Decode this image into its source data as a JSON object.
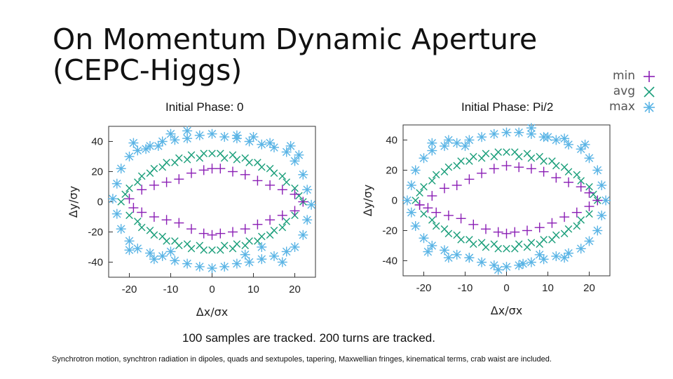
{
  "title_line1": "On Momentum Dynamic Aperture",
  "title_line2": "(CEPC-Higgs)",
  "colors": {
    "min": "#8B1FB5",
    "avg": "#1A9E7A",
    "max": "#5AB4E5",
    "axis": "#333333"
  },
  "legend": [
    {
      "label": "min",
      "symbol": "plus",
      "color": "#8B1FB5"
    },
    {
      "label": "avg",
      "symbol": "cross",
      "color": "#1A9E7A"
    },
    {
      "label": "max",
      "symbol": "star",
      "color": "#5AB4E5"
    }
  ],
  "footnote": "100 samples are tracked. 200 turns are tracked.",
  "subnote": "Synchrotron motion, synchtron radiation in dipoles, quads and sextupoles, tapering, Maxwellian fringes, kinematical terms, crab waist are included.",
  "chart_data": [
    {
      "type": "scatter",
      "title": "Initial Phase: 0",
      "xlabel": "Δx/σx",
      "ylabel": "Δy/σy",
      "xlim": [
        -25,
        25
      ],
      "ylim": [
        -50,
        50
      ],
      "xticks": [
        -20,
        -10,
        0,
        10,
        20
      ],
      "yticks": [
        -40,
        -20,
        0,
        20,
        40
      ],
      "series": [
        {
          "name": "min",
          "symbol": "plus",
          "color": "#8B1FB5",
          "x": [
            -20,
            -17,
            -14,
            -11,
            -8,
            -5,
            -2,
            0,
            2,
            5,
            8,
            11,
            14,
            17,
            20,
            22,
            20,
            17,
            14,
            11,
            8,
            5,
            2,
            0,
            -2,
            -5,
            -8,
            -11,
            -14,
            -17,
            -19
          ],
          "y": [
            2,
            8,
            11,
            13,
            15,
            19,
            21,
            22,
            22,
            20,
            18,
            14,
            11,
            8,
            5,
            0,
            -6,
            -9,
            -12,
            -15,
            -18,
            -20,
            -21,
            -22,
            -21,
            -18,
            -14,
            -12,
            -10,
            -7,
            -4
          ]
        },
        {
          "name": "avg",
          "symbol": "cross",
          "color": "#1A9E7A",
          "x": [
            -22,
            -20,
            -17,
            -14,
            -11,
            -8,
            -5,
            -2,
            0,
            2,
            5,
            8,
            11,
            14,
            17,
            20,
            22,
            20,
            17,
            14,
            11,
            8,
            5,
            2,
            0,
            -2,
            -5,
            -8,
            -11,
            -14,
            -17,
            -20,
            -21,
            -18,
            -15,
            -12,
            -9,
            -6,
            -3,
            3,
            6,
            9,
            12,
            15,
            18,
            21,
            18,
            15,
            12,
            9,
            6,
            3,
            -3,
            -6,
            -9,
            -12,
            -15,
            -18
          ],
          "y": [
            0,
            9,
            17,
            22,
            26,
            29,
            31,
            32,
            32,
            32,
            31,
            29,
            26,
            22,
            17,
            9,
            0,
            -9,
            -17,
            -22,
            -26,
            -29,
            -31,
            -32,
            -32,
            -32,
            -31,
            -29,
            -26,
            -22,
            -17,
            -9,
            5,
            13,
            19,
            23,
            26,
            28,
            29,
            29,
            28,
            26,
            23,
            19,
            13,
            4,
            -13,
            -19,
            -23,
            -26,
            -28,
            -29,
            -29,
            -28,
            -26,
            -23,
            -19,
            -13
          ]
        },
        {
          "name": "max",
          "symbol": "star",
          "color": "#5AB4E5",
          "x": [
            -24,
            -23,
            -22,
            -20,
            -18,
            -15,
            -12,
            -9,
            -6,
            -3,
            0,
            3,
            6,
            9,
            12,
            15,
            18,
            20,
            22,
            23,
            24,
            23,
            22,
            20,
            18,
            15,
            12,
            9,
            6,
            3,
            0,
            -3,
            -6,
            -9,
            -12,
            -15,
            -18,
            -20,
            -22,
            -23,
            -19,
            -16,
            -13,
            -10,
            -6,
            6,
            10,
            14,
            19,
            21,
            -20,
            -14,
            -10,
            8,
            12,
            17
          ],
          "y": [
            2,
            12,
            22,
            30,
            34,
            37,
            40,
            41,
            42,
            44,
            45,
            43,
            42,
            40,
            38,
            36,
            33,
            27,
            18,
            8,
            -2,
            -12,
            -22,
            -30,
            -33,
            -36,
            -38,
            -40,
            -41,
            -43,
            -44,
            -43,
            -41,
            -39,
            -36,
            -34,
            -31,
            -26,
            -18,
            -8,
            39,
            35,
            37,
            45,
            47,
            44,
            43,
            39,
            37,
            31,
            -32,
            -38,
            -33,
            -35,
            -30,
            -40
          ]
        }
      ]
    },
    {
      "type": "scatter",
      "title": "Initial Phase: Pi/2",
      "xlabel": "Δx/σx",
      "ylabel": "Δy/σy",
      "xlim": [
        -25,
        25
      ],
      "ylim": [
        -50,
        50
      ],
      "xticks": [
        -20,
        -10,
        0,
        10,
        20
      ],
      "yticks": [
        -40,
        -20,
        0,
        20,
        40
      ],
      "series": [
        {
          "name": "min",
          "symbol": "plus",
          "color": "#8B1FB5",
          "x": [
            -21,
            -18,
            -15,
            -12,
            -9,
            -6,
            -3,
            0,
            3,
            6,
            9,
            12,
            15,
            18,
            20,
            22,
            20,
            17,
            14,
            11,
            8,
            5,
            2,
            0,
            -2,
            -5,
            -8,
            -11,
            -14,
            -17,
            -19,
            -21
          ],
          "y": [
            -3,
            3,
            8,
            10,
            14,
            18,
            21,
            23,
            22,
            21,
            19,
            15,
            12,
            9,
            5,
            0,
            -4,
            -8,
            -11,
            -15,
            -18,
            -20,
            -21,
            -22,
            -21,
            -19,
            -16,
            -12,
            -10,
            -8,
            -5,
            -3
          ]
        },
        {
          "name": "avg",
          "symbol": "cross",
          "color": "#1A9E7A",
          "x": [
            -22,
            -20,
            -17,
            -14,
            -11,
            -8,
            -5,
            -2,
            0,
            2,
            5,
            8,
            11,
            14,
            17,
            20,
            22,
            20,
            17,
            14,
            11,
            8,
            5,
            2,
            0,
            -2,
            -5,
            -8,
            -11,
            -14,
            -17,
            -20,
            -21,
            -18,
            -15,
            -12,
            -9,
            -6,
            -3,
            3,
            6,
            9,
            12,
            15,
            18,
            21,
            18,
            15,
            12,
            9,
            6,
            3,
            -3,
            -6,
            -9,
            -12,
            -15,
            -18
          ],
          "y": [
            0,
            9,
            17,
            22,
            26,
            29,
            31,
            32,
            32,
            32,
            31,
            29,
            26,
            22,
            17,
            9,
            0,
            -9,
            -17,
            -22,
            -26,
            -29,
            -31,
            -32,
            -32,
            -32,
            -31,
            -29,
            -26,
            -22,
            -17,
            -9,
            5,
            13,
            19,
            23,
            26,
            28,
            29,
            29,
            28,
            26,
            23,
            19,
            13,
            4,
            -13,
            -19,
            -23,
            -26,
            -28,
            -29,
            -29,
            -28,
            -26,
            -23,
            -19,
            -13
          ]
        },
        {
          "name": "max",
          "symbol": "star",
          "color": "#5AB4E5",
          "x": [
            -24,
            -23,
            -22,
            -20,
            -18,
            -15,
            -12,
            -9,
            -6,
            -3,
            0,
            3,
            6,
            9,
            12,
            15,
            18,
            20,
            22,
            23,
            24,
            23,
            22,
            20,
            18,
            15,
            12,
            9,
            6,
            3,
            0,
            -3,
            -6,
            -9,
            -12,
            -15,
            -18,
            -20,
            -22,
            -23,
            -18,
            -14,
            -10,
            6,
            10,
            14,
            19,
            -19,
            -14,
            -9,
            -2,
            4,
            8,
            14
          ],
          "y": [
            0,
            10,
            20,
            28,
            33,
            36,
            38,
            40,
            42,
            44,
            45,
            45,
            44,
            42,
            40,
            37,
            34,
            28,
            20,
            10,
            0,
            -10,
            -20,
            -27,
            -32,
            -35,
            -37,
            -39,
            -41,
            -43,
            -44,
            -43,
            -41,
            -38,
            -36,
            -33,
            -30,
            -25,
            -17,
            -8,
            38,
            40,
            36,
            48,
            42,
            41,
            37,
            -34,
            -38,
            -38,
            -46,
            -42,
            -36,
            -38
          ]
        }
      ]
    }
  ]
}
